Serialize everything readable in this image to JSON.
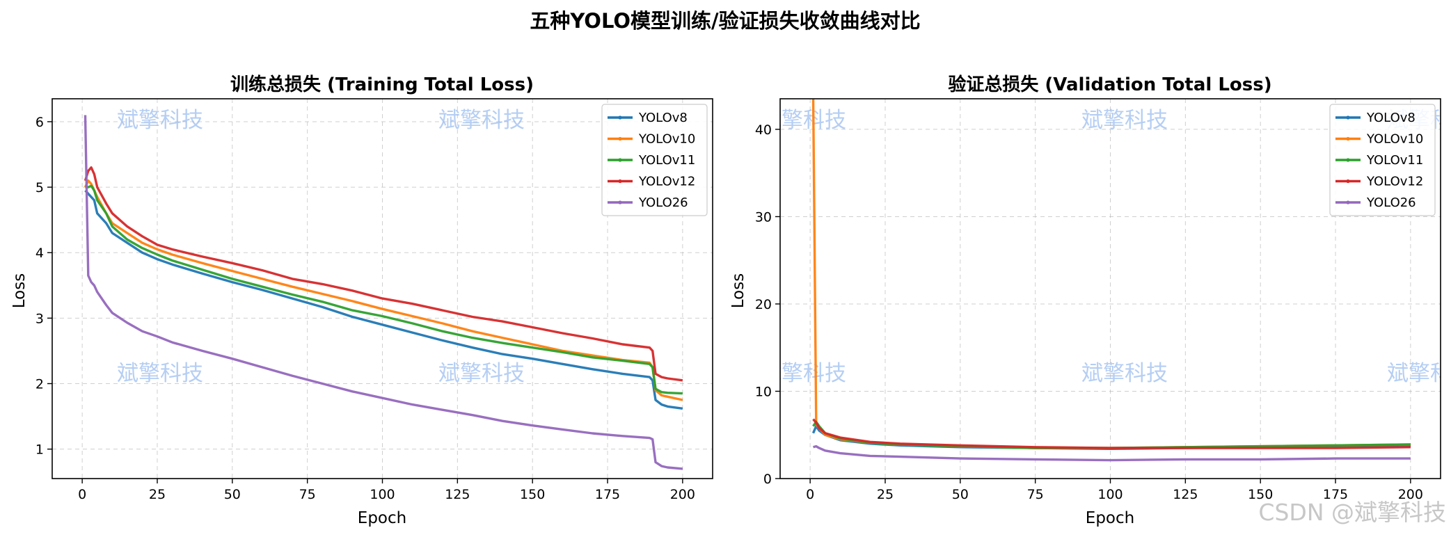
{
  "suptitle": "五种YOLO模型训练/验证损失收敛曲线对比",
  "watermark": "斌擎科技",
  "footer_watermark": "CSDN @斌擎科技",
  "colors": {
    "YOLOv8": "#1f77b4",
    "YOLOv10": "#ff7f0e",
    "YOLOv11": "#2ca02c",
    "YOLOv12": "#d62728",
    "YOLO26": "#9467bd"
  },
  "chart_data": [
    {
      "type": "line",
      "title": "训练总损失 (Training Total Loss)",
      "xlabel": "Epoch",
      "ylabel": "Loss",
      "xlim": [
        -10,
        210
      ],
      "ylim": [
        0.55,
        6.35
      ],
      "xticks": [
        0,
        25,
        50,
        75,
        100,
        125,
        150,
        175,
        200
      ],
      "yticks": [
        1,
        2,
        3,
        4,
        5,
        6
      ],
      "grid": true,
      "legend": "top-right",
      "series": [
        {
          "name": "YOLOv8",
          "x": [
            1,
            2,
            3,
            4,
            5,
            8,
            10,
            15,
            20,
            25,
            30,
            40,
            50,
            60,
            70,
            80,
            90,
            100,
            110,
            120,
            130,
            140,
            150,
            160,
            170,
            180,
            189,
            190,
            191,
            193,
            195,
            200
          ],
          "y": [
            4.95,
            4.9,
            4.85,
            4.8,
            4.6,
            4.45,
            4.3,
            4.15,
            4.0,
            3.9,
            3.82,
            3.68,
            3.55,
            3.43,
            3.3,
            3.17,
            3.02,
            2.9,
            2.78,
            2.66,
            2.55,
            2.45,
            2.38,
            2.3,
            2.22,
            2.15,
            2.1,
            2.05,
            1.75,
            1.68,
            1.65,
            1.62
          ]
        },
        {
          "name": "YOLOv10",
          "x": [
            1,
            2,
            3,
            4,
            5,
            8,
            10,
            15,
            20,
            25,
            30,
            40,
            50,
            60,
            70,
            80,
            90,
            100,
            110,
            120,
            130,
            140,
            150,
            160,
            170,
            180,
            189,
            190,
            191,
            193,
            195,
            200
          ],
          "y": [
            5.0,
            5.1,
            5.05,
            4.95,
            4.85,
            4.6,
            4.45,
            4.3,
            4.15,
            4.05,
            3.97,
            3.84,
            3.72,
            3.6,
            3.48,
            3.37,
            3.26,
            3.14,
            3.03,
            2.92,
            2.8,
            2.7,
            2.6,
            2.5,
            2.43,
            2.36,
            2.32,
            2.25,
            1.9,
            1.82,
            1.8,
            1.75
          ]
        },
        {
          "name": "YOLOv11",
          "x": [
            1,
            2,
            3,
            4,
            5,
            8,
            10,
            15,
            20,
            25,
            30,
            40,
            50,
            60,
            70,
            80,
            90,
            100,
            110,
            120,
            130,
            140,
            150,
            160,
            170,
            180,
            189,
            190,
            191,
            193,
            195,
            200
          ],
          "y": [
            5.0,
            5.0,
            5.02,
            4.95,
            4.8,
            4.6,
            4.4,
            4.2,
            4.07,
            3.97,
            3.88,
            3.74,
            3.6,
            3.48,
            3.36,
            3.25,
            3.12,
            3.03,
            2.92,
            2.8,
            2.7,
            2.62,
            2.55,
            2.48,
            2.4,
            2.35,
            2.3,
            2.25,
            1.92,
            1.87,
            1.86,
            1.85
          ]
        },
        {
          "name": "YOLOv12",
          "x": [
            1,
            2,
            3,
            4,
            5,
            8,
            10,
            15,
            20,
            25,
            30,
            40,
            50,
            60,
            70,
            80,
            90,
            100,
            110,
            120,
            130,
            140,
            150,
            160,
            170,
            180,
            189,
            190,
            191,
            193,
            195,
            200
          ],
          "y": [
            5.1,
            5.25,
            5.3,
            5.2,
            5.0,
            4.75,
            4.6,
            4.4,
            4.25,
            4.12,
            4.05,
            3.94,
            3.84,
            3.73,
            3.6,
            3.52,
            3.42,
            3.3,
            3.22,
            3.12,
            3.02,
            2.95,
            2.86,
            2.77,
            2.69,
            2.6,
            2.55,
            2.5,
            2.15,
            2.1,
            2.08,
            2.05
          ]
        },
        {
          "name": "YOLO26",
          "x": [
            1,
            2,
            3,
            4,
            5,
            8,
            10,
            15,
            20,
            25,
            30,
            40,
            50,
            60,
            70,
            80,
            90,
            100,
            110,
            120,
            130,
            140,
            150,
            160,
            170,
            180,
            189,
            190,
            191,
            193,
            195,
            200
          ],
          "y": [
            6.1,
            3.65,
            3.55,
            3.5,
            3.4,
            3.2,
            3.08,
            2.93,
            2.8,
            2.72,
            2.63,
            2.5,
            2.38,
            2.25,
            2.12,
            2.0,
            1.88,
            1.78,
            1.68,
            1.6,
            1.52,
            1.43,
            1.36,
            1.3,
            1.24,
            1.2,
            1.17,
            1.15,
            0.8,
            0.74,
            0.72,
            0.7
          ]
        }
      ]
    },
    {
      "type": "line",
      "title": "验证总损失 (Validation Total Loss)",
      "xlabel": "Epoch",
      "ylabel": "Loss",
      "xlim": [
        -10,
        210
      ],
      "ylim": [
        0,
        43.5
      ],
      "xticks": [
        0,
        25,
        50,
        75,
        100,
        125,
        150,
        175,
        200
      ],
      "yticks": [
        0,
        10,
        20,
        30,
        40
      ],
      "grid": true,
      "legend": "top-right",
      "series": [
        {
          "name": "YOLOv8",
          "x": [
            1,
            2,
            3,
            5,
            10,
            20,
            30,
            50,
            75,
            100,
            125,
            150,
            175,
            200
          ],
          "y": [
            5.2,
            6.0,
            5.5,
            5.0,
            4.4,
            4.0,
            3.8,
            3.6,
            3.5,
            3.4,
            3.5,
            3.6,
            3.7,
            3.7
          ]
        },
        {
          "name": "YOLOv10",
          "x": [
            1,
            2,
            3,
            5,
            10,
            20,
            30,
            50,
            75,
            100,
            125,
            150,
            175,
            200
          ],
          "y": [
            44.0,
            6.2,
            5.8,
            5.0,
            4.5,
            4.1,
            3.9,
            3.7,
            3.5,
            3.5,
            3.6,
            3.7,
            3.8,
            3.9
          ]
        },
        {
          "name": "YOLOv11",
          "x": [
            1,
            2,
            3,
            5,
            10,
            20,
            30,
            50,
            75,
            100,
            125,
            150,
            175,
            200
          ],
          "y": [
            6.0,
            6.5,
            6.0,
            5.2,
            4.6,
            4.1,
            3.9,
            3.7,
            3.5,
            3.5,
            3.6,
            3.7,
            3.8,
            3.9
          ]
        },
        {
          "name": "YOLOv12",
          "x": [
            1,
            2,
            3,
            5,
            10,
            20,
            30,
            50,
            75,
            100,
            125,
            150,
            175,
            200
          ],
          "y": [
            6.8,
            6.4,
            5.8,
            5.2,
            4.7,
            4.2,
            4.0,
            3.8,
            3.6,
            3.5,
            3.5,
            3.5,
            3.5,
            3.6
          ]
        },
        {
          "name": "YOLO26",
          "x": [
            1,
            2,
            3,
            5,
            10,
            20,
            30,
            50,
            75,
            100,
            125,
            150,
            175,
            200
          ],
          "y": [
            3.6,
            3.7,
            3.5,
            3.2,
            2.9,
            2.6,
            2.5,
            2.3,
            2.2,
            2.1,
            2.2,
            2.2,
            2.3,
            2.3
          ]
        }
      ]
    }
  ]
}
